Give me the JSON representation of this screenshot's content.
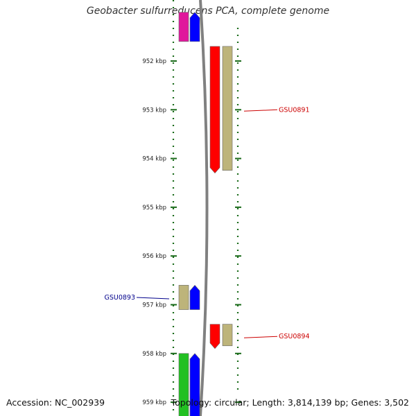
{
  "title": "Geobacter sulfurreducens PCA, complete genome",
  "footer": {
    "accession": "Accession: NC_002939",
    "stats": "Topology: circular; Length: 3,814,139 bp; Genes: 3,502"
  },
  "axis": {
    "unit": "kbp",
    "ticks": [
      {
        "kbp": 952,
        "label": "952 kbp"
      },
      {
        "kbp": 953,
        "label": "953 kbp"
      },
      {
        "kbp": 954,
        "label": "954 kbp"
      },
      {
        "kbp": 955,
        "label": "955 kbp"
      },
      {
        "kbp": 956,
        "label": "956 kbp"
      },
      {
        "kbp": 957,
        "label": "957 kbp"
      },
      {
        "kbp": 958,
        "label": "958 kbp"
      },
      {
        "kbp": 959,
        "label": "959 kbp"
      }
    ]
  },
  "colors": {
    "gene_forward": "#0000ff",
    "gene_reverse": "#ff0000",
    "cds": "#bdb47a",
    "rna_pink": "#e0189c",
    "rna_green": "#22c022",
    "axis": "#808080",
    "ticks": "#1a6b1a",
    "label_reverse": "#cc0000",
    "label_forward": "#00008b"
  },
  "features": [
    {
      "name": "GSU0891",
      "strand": "reverse",
      "start_kbp": 951.7,
      "end_kbp": 954.3,
      "labeled": true
    },
    {
      "name": "GSU0893",
      "strand": "forward",
      "start_kbp": 956.6,
      "end_kbp": 957.1,
      "labeled": true
    },
    {
      "name": "GSU0894",
      "strand": "reverse",
      "start_kbp": 957.4,
      "end_kbp": 957.9,
      "labeled": true
    },
    {
      "name": "upstream-rna",
      "strand": "forward",
      "start_kbp": 951.0,
      "end_kbp": 951.6,
      "rna": "rna_pink",
      "labeled": false
    },
    {
      "name": "downstream-rna",
      "strand": "forward",
      "start_kbp": 958.0,
      "end_kbp": 959.3,
      "rna": "rna_green",
      "labeled": false
    }
  ]
}
